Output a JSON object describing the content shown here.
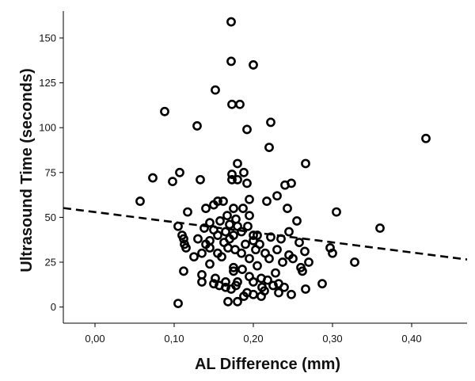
{
  "chart_data": {
    "type": "scatter",
    "xlabel": "AL Difference (mm)",
    "ylabel": "Ultrasound Time (seconds)",
    "xlim": [
      -0.04,
      0.47
    ],
    "ylim": [
      -9,
      165
    ],
    "x_ticks": [
      {
        "value": 0.0,
        "label": "0,00"
      },
      {
        "value": 0.1,
        "label": "0,10"
      },
      {
        "value": 0.2,
        "label": "0,20"
      },
      {
        "value": 0.3,
        "label": "0,30"
      },
      {
        "value": 0.4,
        "label": "0,40"
      }
    ],
    "y_ticks": [
      {
        "value": 0,
        "label": "0"
      },
      {
        "value": 25,
        "label": "25"
      },
      {
        "value": 50,
        "label": "50"
      },
      {
        "value": 75,
        "label": "75"
      },
      {
        "value": 100,
        "label": "100"
      },
      {
        "value": 125,
        "label": "125"
      },
      {
        "value": 150,
        "label": "150"
      }
    ],
    "grid": false,
    "marker_color": "#000000",
    "trend_line": {
      "style": "dashed",
      "color": "#000000",
      "x": [
        -0.04,
        0.47
      ],
      "y": [
        55.2,
        26.5
      ]
    },
    "points": [
      [
        0.172,
        159
      ],
      [
        0.172,
        137
      ],
      [
        0.2,
        135
      ],
      [
        0.152,
        121
      ],
      [
        0.173,
        113
      ],
      [
        0.183,
        113
      ],
      [
        0.088,
        109
      ],
      [
        0.222,
        103
      ],
      [
        0.129,
        101
      ],
      [
        0.192,
        99
      ],
      [
        0.418,
        94
      ],
      [
        0.22,
        89
      ],
      [
        0.18,
        80
      ],
      [
        0.266,
        80
      ],
      [
        0.107,
        75
      ],
      [
        0.173,
        74
      ],
      [
        0.188,
        75
      ],
      [
        0.073,
        72
      ],
      [
        0.133,
        71
      ],
      [
        0.173,
        71
      ],
      [
        0.18,
        71
      ],
      [
        0.098,
        70
      ],
      [
        0.192,
        69
      ],
      [
        0.24,
        68
      ],
      [
        0.248,
        69
      ],
      [
        0.23,
        62
      ],
      [
        0.195,
        60
      ],
      [
        0.057,
        59
      ],
      [
        0.217,
        59
      ],
      [
        0.15,
        57
      ],
      [
        0.155,
        59
      ],
      [
        0.162,
        59
      ],
      [
        0.14,
        55
      ],
      [
        0.175,
        55
      ],
      [
        0.187,
        55
      ],
      [
        0.243,
        55
      ],
      [
        0.117,
        53
      ],
      [
        0.305,
        53
      ],
      [
        0.167,
        51
      ],
      [
        0.195,
        51
      ],
      [
        0.178,
        49
      ],
      [
        0.158,
        48
      ],
      [
        0.255,
        48
      ],
      [
        0.145,
        47
      ],
      [
        0.17,
        46
      ],
      [
        0.18,
        45
      ],
      [
        0.193,
        45
      ],
      [
        0.105,
        45
      ],
      [
        0.138,
        44
      ],
      [
        0.36,
        44
      ],
      [
        0.15,
        43
      ],
      [
        0.165,
        42
      ],
      [
        0.185,
        42
      ],
      [
        0.245,
        42
      ],
      [
        0.11,
        40
      ],
      [
        0.155,
        40
      ],
      [
        0.175,
        40
      ],
      [
        0.2,
        40
      ],
      [
        0.222,
        39
      ],
      [
        0.205,
        40
      ],
      [
        0.112,
        38
      ],
      [
        0.13,
        38
      ],
      [
        0.145,
        37
      ],
      [
        0.17,
        38
      ],
      [
        0.2,
        37
      ],
      [
        0.235,
        38
      ],
      [
        0.258,
        36
      ],
      [
        0.113,
        35
      ],
      [
        0.14,
        35
      ],
      [
        0.163,
        36
      ],
      [
        0.19,
        35
      ],
      [
        0.208,
        35
      ],
      [
        0.115,
        33
      ],
      [
        0.145,
        33
      ],
      [
        0.168,
        33
      ],
      [
        0.177,
        32
      ],
      [
        0.203,
        32
      ],
      [
        0.23,
        32
      ],
      [
        0.265,
        31
      ],
      [
        0.297,
        33
      ],
      [
        0.135,
        30
      ],
      [
        0.155,
        30
      ],
      [
        0.185,
        30
      ],
      [
        0.215,
        30
      ],
      [
        0.245,
        29
      ],
      [
        0.3,
        30
      ],
      [
        0.125,
        28
      ],
      [
        0.16,
        28
      ],
      [
        0.195,
        27
      ],
      [
        0.22,
        27
      ],
      [
        0.25,
        27
      ],
      [
        0.237,
        25
      ],
      [
        0.27,
        25
      ],
      [
        0.328,
        25
      ],
      [
        0.145,
        24
      ],
      [
        0.175,
        22
      ],
      [
        0.205,
        23
      ],
      [
        0.26,
        22
      ],
      [
        0.186,
        21
      ],
      [
        0.112,
        20
      ],
      [
        0.175,
        20
      ],
      [
        0.228,
        19
      ],
      [
        0.262,
        20
      ],
      [
        0.135,
        18
      ],
      [
        0.195,
        17
      ],
      [
        0.21,
        16
      ],
      [
        0.152,
        16
      ],
      [
        0.165,
        14
      ],
      [
        0.18,
        14
      ],
      [
        0.2,
        14
      ],
      [
        0.218,
        15
      ],
      [
        0.135,
        14
      ],
      [
        0.15,
        13
      ],
      [
        0.232,
        13
      ],
      [
        0.287,
        13
      ],
      [
        0.157,
        12
      ],
      [
        0.178,
        12
      ],
      [
        0.225,
        12
      ],
      [
        0.165,
        11
      ],
      [
        0.211,
        11
      ],
      [
        0.239,
        11
      ],
      [
        0.266,
        10
      ],
      [
        0.172,
        10
      ],
      [
        0.214,
        9
      ],
      [
        0.192,
        8
      ],
      [
        0.232,
        8
      ],
      [
        0.2,
        7
      ],
      [
        0.248,
        7
      ],
      [
        0.188,
        6
      ],
      [
        0.21,
        6
      ],
      [
        0.168,
        3
      ],
      [
        0.18,
        3
      ],
      [
        0.105,
        2
      ]
    ]
  }
}
